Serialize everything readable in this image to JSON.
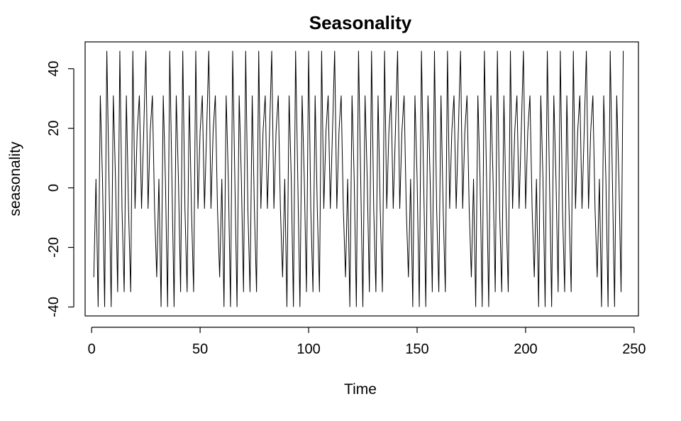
{
  "chart_data": {
    "type": "line",
    "title": "Seasonality",
    "xlabel": "Time",
    "ylabel": "seasonality",
    "xlim": [
      -3,
      252
    ],
    "ylim": [
      -43,
      49
    ],
    "x_ticks": [
      0,
      50,
      100,
      150,
      200,
      250
    ],
    "y_ticks": [
      -40,
      -20,
      0,
      20,
      40
    ],
    "x_start": 1,
    "period": 29,
    "season_values": [
      -30,
      3,
      -40,
      31,
      3,
      -40,
      46,
      3,
      -40,
      31,
      3,
      -35,
      46,
      -7,
      -35,
      31,
      -7,
      -35,
      46,
      -7,
      19,
      31,
      -7,
      19,
      46,
      -7,
      19,
      31,
      -7
    ],
    "n": 245,
    "legend": "none",
    "grid": false
  }
}
